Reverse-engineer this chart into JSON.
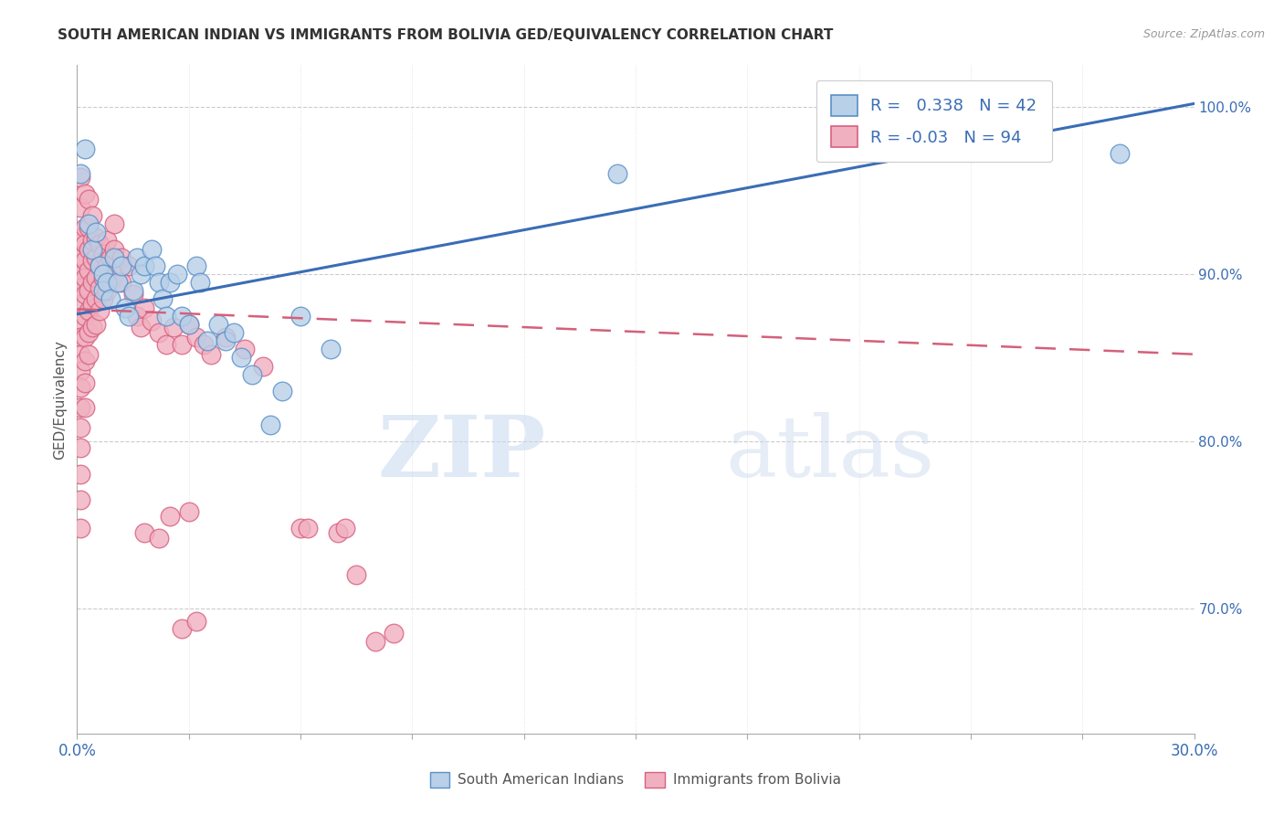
{
  "title": "SOUTH AMERICAN INDIAN VS IMMIGRANTS FROM BOLIVIA GED/EQUIVALENCY CORRELATION CHART",
  "source": "Source: ZipAtlas.com",
  "ylabel": "GED/Equivalency",
  "xmin": 0.0,
  "xmax": 0.3,
  "ymin": 0.625,
  "ymax": 1.025,
  "R_blue": 0.338,
  "N_blue": 42,
  "R_pink": -0.03,
  "N_pink": 94,
  "legend_label_blue": "South American Indians",
  "legend_label_pink": "Immigrants from Bolivia",
  "blue_fill": "#b8d0e8",
  "blue_edge": "#5a90c8",
  "pink_fill": "#f0b0c0",
  "pink_edge": "#d86080",
  "blue_line_color": "#3a6db5",
  "pink_line_color": "#d4607a",
  "watermark_zip": "ZIP",
  "watermark_atlas": "atlas",
  "ytick_positions": [
    0.7,
    0.8,
    0.9,
    1.0
  ],
  "ytick_labels": [
    "70.0%",
    "80.0%",
    "90.0%",
    "100.0%"
  ],
  "blue_trend_y0": 0.876,
  "blue_trend_y1": 1.002,
  "pink_trend_y0": 0.879,
  "pink_trend_y1": 0.852,
  "blue_dots": [
    [
      0.001,
      0.96
    ],
    [
      0.002,
      0.975
    ],
    [
      0.003,
      0.93
    ],
    [
      0.004,
      0.915
    ],
    [
      0.005,
      0.925
    ],
    [
      0.006,
      0.905
    ],
    [
      0.007,
      0.9
    ],
    [
      0.007,
      0.89
    ],
    [
      0.008,
      0.895
    ],
    [
      0.009,
      0.885
    ],
    [
      0.01,
      0.91
    ],
    [
      0.011,
      0.895
    ],
    [
      0.012,
      0.905
    ],
    [
      0.013,
      0.88
    ],
    [
      0.014,
      0.875
    ],
    [
      0.015,
      0.89
    ],
    [
      0.016,
      0.91
    ],
    [
      0.017,
      0.9
    ],
    [
      0.018,
      0.905
    ],
    [
      0.02,
      0.915
    ],
    [
      0.021,
      0.905
    ],
    [
      0.022,
      0.895
    ],
    [
      0.023,
      0.885
    ],
    [
      0.024,
      0.875
    ],
    [
      0.025,
      0.895
    ],
    [
      0.027,
      0.9
    ],
    [
      0.028,
      0.875
    ],
    [
      0.03,
      0.87
    ],
    [
      0.032,
      0.905
    ],
    [
      0.033,
      0.895
    ],
    [
      0.035,
      0.86
    ],
    [
      0.038,
      0.87
    ],
    [
      0.04,
      0.86
    ],
    [
      0.042,
      0.865
    ],
    [
      0.044,
      0.85
    ],
    [
      0.047,
      0.84
    ],
    [
      0.052,
      0.81
    ],
    [
      0.055,
      0.83
    ],
    [
      0.06,
      0.875
    ],
    [
      0.068,
      0.855
    ],
    [
      0.145,
      0.96
    ],
    [
      0.28,
      0.972
    ]
  ],
  "pink_dots": [
    [
      0.001,
      0.958
    ],
    [
      0.001,
      0.94
    ],
    [
      0.001,
      0.922
    ],
    [
      0.001,
      0.91
    ],
    [
      0.001,
      0.9
    ],
    [
      0.001,
      0.892
    ],
    [
      0.001,
      0.882
    ],
    [
      0.001,
      0.872
    ],
    [
      0.001,
      0.862
    ],
    [
      0.001,
      0.852
    ],
    [
      0.001,
      0.842
    ],
    [
      0.001,
      0.832
    ],
    [
      0.001,
      0.82
    ],
    [
      0.001,
      0.808
    ],
    [
      0.001,
      0.796
    ],
    [
      0.001,
      0.78
    ],
    [
      0.001,
      0.765
    ],
    [
      0.001,
      0.748
    ],
    [
      0.002,
      0.948
    ],
    [
      0.002,
      0.928
    ],
    [
      0.002,
      0.918
    ],
    [
      0.002,
      0.908
    ],
    [
      0.002,
      0.898
    ],
    [
      0.002,
      0.888
    ],
    [
      0.002,
      0.875
    ],
    [
      0.002,
      0.862
    ],
    [
      0.002,
      0.848
    ],
    [
      0.002,
      0.835
    ],
    [
      0.002,
      0.82
    ],
    [
      0.003,
      0.945
    ],
    [
      0.003,
      0.928
    ],
    [
      0.003,
      0.915
    ],
    [
      0.003,
      0.902
    ],
    [
      0.003,
      0.89
    ],
    [
      0.003,
      0.878
    ],
    [
      0.003,
      0.865
    ],
    [
      0.003,
      0.852
    ],
    [
      0.004,
      0.935
    ],
    [
      0.004,
      0.92
    ],
    [
      0.004,
      0.908
    ],
    [
      0.004,
      0.895
    ],
    [
      0.004,
      0.882
    ],
    [
      0.004,
      0.868
    ],
    [
      0.005,
      0.922
    ],
    [
      0.005,
      0.91
    ],
    [
      0.005,
      0.898
    ],
    [
      0.005,
      0.885
    ],
    [
      0.005,
      0.87
    ],
    [
      0.006,
      0.918
    ],
    [
      0.006,
      0.905
    ],
    [
      0.006,
      0.892
    ],
    [
      0.006,
      0.878
    ],
    [
      0.007,
      0.912
    ],
    [
      0.007,
      0.898
    ],
    [
      0.007,
      0.885
    ],
    [
      0.008,
      0.92
    ],
    [
      0.008,
      0.905
    ],
    [
      0.008,
      0.89
    ],
    [
      0.009,
      0.91
    ],
    [
      0.009,
      0.895
    ],
    [
      0.01,
      0.93
    ],
    [
      0.01,
      0.915
    ],
    [
      0.01,
      0.9
    ],
    [
      0.012,
      0.91
    ],
    [
      0.012,
      0.895
    ],
    [
      0.014,
      0.905
    ],
    [
      0.015,
      0.888
    ],
    [
      0.016,
      0.875
    ],
    [
      0.017,
      0.868
    ],
    [
      0.018,
      0.88
    ],
    [
      0.02,
      0.872
    ],
    [
      0.022,
      0.865
    ],
    [
      0.024,
      0.858
    ],
    [
      0.026,
      0.868
    ],
    [
      0.028,
      0.858
    ],
    [
      0.03,
      0.87
    ],
    [
      0.032,
      0.862
    ],
    [
      0.034,
      0.858
    ],
    [
      0.036,
      0.852
    ],
    [
      0.04,
      0.862
    ],
    [
      0.045,
      0.855
    ],
    [
      0.05,
      0.845
    ],
    [
      0.06,
      0.748
    ],
    [
      0.062,
      0.748
    ],
    [
      0.07,
      0.745
    ],
    [
      0.072,
      0.748
    ],
    [
      0.075,
      0.72
    ],
    [
      0.08,
      0.68
    ],
    [
      0.085,
      0.685
    ],
    [
      0.018,
      0.745
    ],
    [
      0.022,
      0.742
    ],
    [
      0.025,
      0.755
    ],
    [
      0.03,
      0.758
    ],
    [
      0.028,
      0.688
    ],
    [
      0.032,
      0.692
    ]
  ]
}
